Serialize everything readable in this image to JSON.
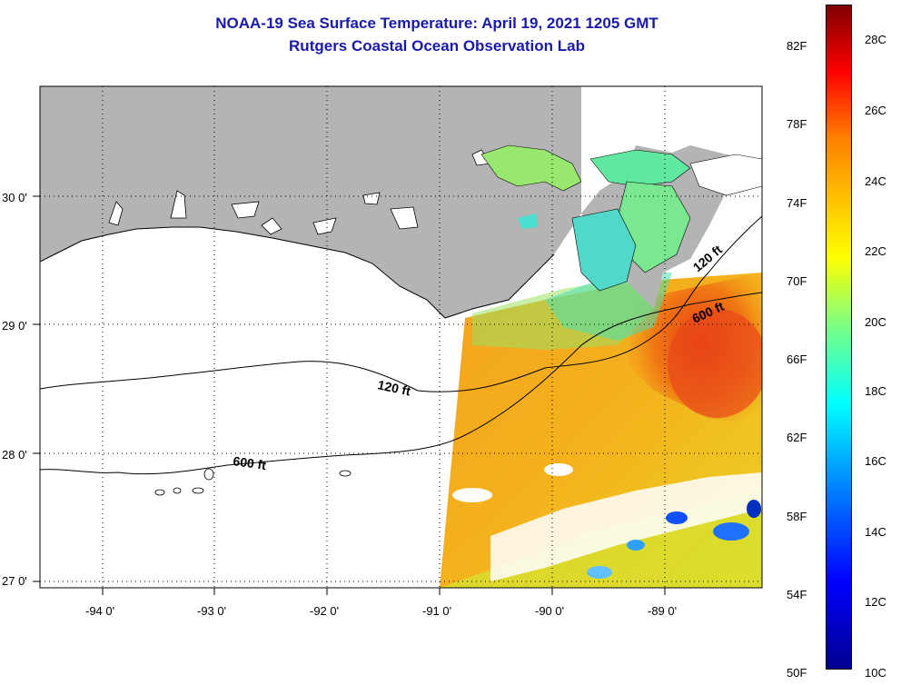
{
  "header": {
    "title_line1": "NOAA-19 Sea Surface Temperature:  April 19, 2021 1205 GMT",
    "title_line2": "Rutgers Coastal Ocean Observation Lab"
  },
  "map": {
    "lat_range": [
      26.95,
      30.85
    ],
    "lon_range": [
      -94.55,
      -88.25
    ],
    "lat_labels": [
      {
        "value": 30,
        "text": "30 0'"
      },
      {
        "value": 29,
        "text": "29 0'"
      },
      {
        "value": 28,
        "text": "28 0'"
      },
      {
        "value": 27,
        "text": "27 0'"
      }
    ],
    "lon_labels": [
      {
        "value": -94,
        "text": "-94 0'"
      },
      {
        "value": -93,
        "text": "-93 0'"
      },
      {
        "value": -92,
        "text": "-92 0'"
      },
      {
        "value": -91,
        "text": "-91 0'"
      },
      {
        "value": -90,
        "text": "-90 0'"
      },
      {
        "value": -89,
        "text": "-89 0'"
      }
    ],
    "contour_labels": [
      "120 ft",
      "600 ft",
      "120 ft",
      "600 ft"
    ],
    "colors": {
      "land": "#b4b4b4",
      "background": "#ffffff",
      "grid": "#000000"
    }
  },
  "colorbar": {
    "fahrenheit": [
      "82F",
      "78F",
      "74F",
      "70F",
      "66F",
      "62F",
      "58F",
      "54F",
      "50F"
    ],
    "celsius": [
      "28C",
      "26C",
      "24C",
      "22C",
      "20C",
      "18C",
      "16C",
      "14C",
      "12C",
      "10C"
    ]
  }
}
